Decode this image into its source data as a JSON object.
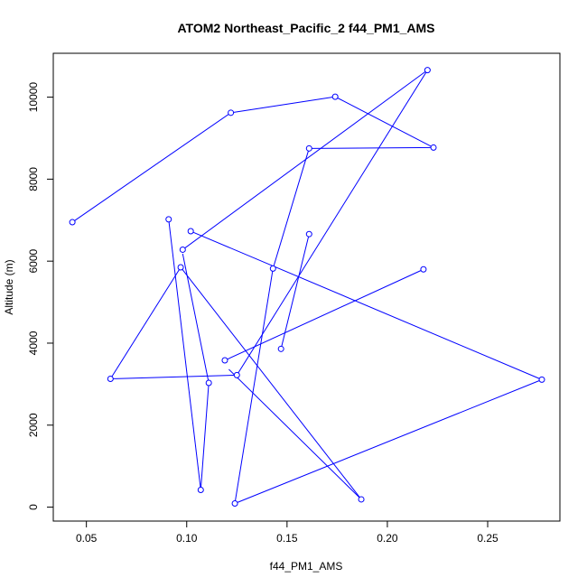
{
  "chart_data": {
    "type": "line",
    "title": "ATOM2 Northeast_Pacific_2 f44_PM1_AMS",
    "xlabel": "f44_PM1_AMS",
    "ylabel": "Altitude (m)",
    "xlim": [
      0.0335,
      0.286
    ],
    "ylim": [
      -340,
      11070
    ],
    "x_ticks": [
      0.05,
      0.1,
      0.15,
      0.2,
      0.25
    ],
    "x_tick_labels": [
      "0.05",
      "0.10",
      "0.15",
      "0.20",
      "0.25"
    ],
    "y_ticks": [
      0,
      2000,
      4000,
      6000,
      8000,
      10000
    ],
    "y_tick_labels": [
      "0",
      "2000",
      "4000",
      "6000",
      "8000",
      "10000"
    ],
    "grid": false,
    "series_color": "#0000ff",
    "points": [
      {
        "x": 0.043,
        "y": 6950
      },
      {
        "x": 0.122,
        "y": 9620
      },
      {
        "x": 0.174,
        "y": 10010
      },
      {
        "x": 0.223,
        "y": 8770
      },
      {
        "x": 0.161,
        "y": 8750
      },
      {
        "x": 0.143,
        "y": 5820
      },
      {
        "x": 0.124,
        "y": 90
      },
      {
        "x": 0.098,
        "y": 6280
      },
      {
        "x": 0.22,
        "y": 10660
      },
      {
        "x": 0.125,
        "y": 3220
      },
      {
        "x": 0.062,
        "y": 3130
      },
      {
        "x": 0.097,
        "y": 5850
      },
      {
        "x": 0.187,
        "y": 190
      },
      {
        "x": 0.119,
        "y": 3580
      },
      {
        "x": 0.218,
        "y": 5800
      },
      {
        "x": 0.147,
        "y": 3860
      },
      {
        "x": 0.161,
        "y": 6660
      }
    ],
    "segments": [
      [
        0,
        1
      ],
      [
        1,
        2
      ],
      [
        2,
        3
      ],
      [
        3,
        4
      ],
      [
        4,
        5
      ],
      [
        5,
        6
      ],
      [
        7,
        8
      ],
      [
        8,
        9
      ],
      [
        9,
        10
      ],
      [
        10,
        11
      ],
      [
        11,
        12
      ],
      [
        13,
        14
      ],
      [
        15,
        16
      ],
      [
        0.091,
        7020,
        0.107,
        420
      ],
      [
        0.107,
        420,
        0.111,
        3030
      ],
      [
        0.111,
        3030,
        0.098,
        6180
      ],
      [
        0.102,
        6730,
        0.277,
        3110
      ],
      [
        0.277,
        3110,
        0.124,
        90
      ],
      [
        0.121,
        3360,
        0.187,
        190
      ]
    ],
    "extra_points": [
      {
        "x": 0.091,
        "y": 7020
      },
      {
        "x": 0.102,
        "y": 6730
      },
      {
        "x": 0.107,
        "y": 420
      },
      {
        "x": 0.111,
        "y": 3030
      },
      {
        "x": 0.277,
        "y": 3110
      }
    ]
  }
}
